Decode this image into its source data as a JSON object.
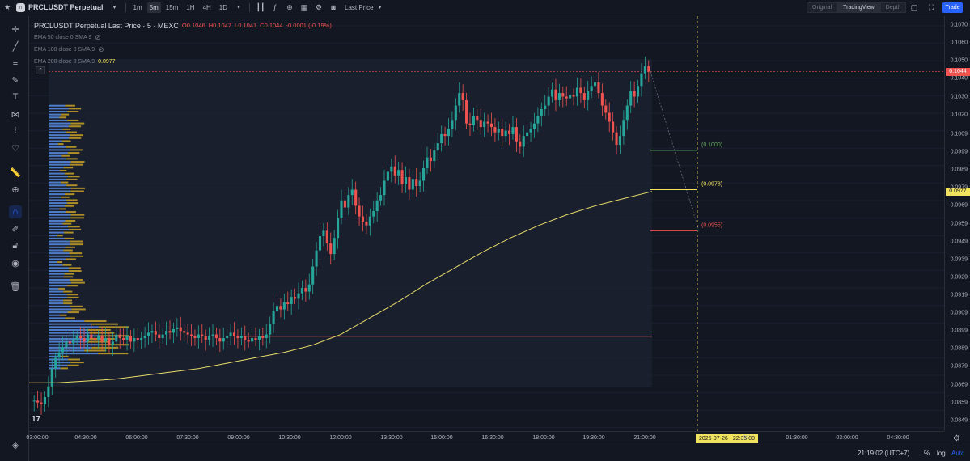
{
  "toolbar": {
    "symbol": "PRCLUSDT Perpetual",
    "intervals": [
      "1m",
      "5m",
      "15m",
      "1H",
      "4H",
      "1D"
    ],
    "active_interval": "5m",
    "price_type": "Last Price",
    "views": [
      "Original",
      "TradingView",
      "Depth"
    ],
    "active_view": "TradingView",
    "trade_label": "Trade"
  },
  "legend": {
    "title": "PRCLUSDT Perpetual Last Price · 5 · MEXC",
    "ohlc": {
      "o": "O0.1046",
      "h": "H0.1047",
      "l": "L0.1041",
      "c": "C0.1044",
      "chg": "-0.0001 (-0.19%)"
    },
    "ema50": "EMA 50 close 0 SMA 9",
    "ema100": "EMA 100 close 0 SMA 9",
    "ema200": "EMA 200 close 0 SMA 9",
    "ema200_value": "0.0977"
  },
  "price_axis": {
    "ticks": [
      "0.1070",
      "0.1060",
      "0.1050",
      "0.1040",
      "0.1030",
      "0.1020",
      "0.1009",
      "0.0999",
      "0.0989",
      "0.0979",
      "0.0969",
      "0.0959",
      "0.0949",
      "0.0939",
      "0.0929",
      "0.0919",
      "0.0909",
      "0.0899",
      "0.0889",
      "0.0879",
      "0.0869",
      "0.0859",
      "0.0849"
    ],
    "last_price": "0.1044",
    "ema_price": "0.0977"
  },
  "time_axis": {
    "ticks": [
      "03:00:00",
      "04:30:00",
      "06:00:00",
      "07:30:00",
      "09:00:00",
      "10:30:00",
      "12:00:00",
      "13:30:00",
      "15:00:00",
      "16:30:00",
      "18:00:00",
      "19:30:00",
      "21:00:00",
      "27",
      "01:30:00",
      "03:00:00",
      "04:30:00"
    ],
    "cursor_date": "2025-07-26",
    "cursor_time": "22:35:00"
  },
  "targets": {
    "upper": "(0.1000)",
    "mid": "(0.0978)",
    "lower": "(0.0955)"
  },
  "colors": {
    "up": "#26a69a",
    "down": "#ef5350",
    "ema200": "#e8db6a",
    "vp_up": "#5b8ee6",
    "vp_down": "#c9a227"
  },
  "bottom": {
    "clock": "21:19:02 (UTC+7)",
    "percent": "%",
    "log": "log",
    "auto": "Auto"
  },
  "chart_data": {
    "type": "candlestick",
    "interval": "5m",
    "ylim": [
      0.0843,
      0.1075
    ],
    "closes": [
      0.086,
      0.0859,
      0.0858,
      0.0862,
      0.0868,
      0.0878,
      0.0884,
      0.0887,
      0.089,
      0.0893,
      0.0892,
      0.0894,
      0.0896,
      0.0895,
      0.0893,
      0.0897,
      0.0895,
      0.0894,
      0.0896,
      0.0893,
      0.0895,
      0.0891,
      0.0893,
      0.0897,
      0.0895,
      0.0894,
      0.0896,
      0.0893,
      0.0895,
      0.0894,
      0.0895,
      0.0896,
      0.0898,
      0.0899,
      0.0897,
      0.0895,
      0.0897,
      0.0899,
      0.0898,
      0.09,
      0.0901,
      0.0899,
      0.0898,
      0.0897,
      0.0896,
      0.0895,
      0.0897,
      0.0896,
      0.0894,
      0.0896,
      0.0897,
      0.0895,
      0.0893,
      0.0895,
      0.0896,
      0.0898,
      0.0896,
      0.0895,
      0.0896,
      0.0894,
      0.0893,
      0.0895,
      0.0894,
      0.0896,
      0.0895,
      0.0897,
      0.0903,
      0.091,
      0.0913,
      0.0911,
      0.0915,
      0.0914,
      0.0918,
      0.0917,
      0.092,
      0.0923,
      0.0921,
      0.0925,
      0.0935,
      0.0944,
      0.0952,
      0.0955,
      0.0948,
      0.0942,
      0.0951,
      0.0962,
      0.0972,
      0.0968,
      0.0975,
      0.0978,
      0.0969,
      0.0963,
      0.096,
      0.0958,
      0.0963,
      0.0966,
      0.0972,
      0.0975,
      0.0983,
      0.0988,
      0.0991,
      0.0986,
      0.0989,
      0.0981,
      0.0985,
      0.0978,
      0.0984,
      0.098,
      0.0983,
      0.099,
      0.0996,
      0.0994,
      0.1,
      0.1004,
      0.1009,
      0.1008,
      0.1012,
      0.1017,
      0.1025,
      0.1032,
      0.1028,
      0.1015,
      0.1014,
      0.1019,
      0.1017,
      0.1013,
      0.1016,
      0.1015,
      0.1013,
      0.101,
      0.1012,
      0.1008,
      0.1011,
      0.1009,
      0.1013,
      0.1005,
      0.1002,
      0.1008,
      0.101,
      0.1012,
      0.1015,
      0.1019,
      0.1023,
      0.1025,
      0.103,
      0.1034,
      0.1028,
      0.1032,
      0.103,
      0.1029,
      0.1031,
      0.103,
      0.1035,
      0.1032,
      0.1028,
      0.1033,
      0.1036,
      0.1038,
      0.1032,
      0.1025,
      0.1021,
      0.1016,
      0.101,
      0.1003,
      0.1008,
      0.1017,
      0.1025,
      0.1033,
      0.103,
      0.1036,
      0.1043,
      0.1047,
      0.1044
    ],
    "ema200": [
      0.087,
      0.087,
      0.0871,
      0.0872,
      0.0874,
      0.0876,
      0.0878,
      0.0881,
      0.0884,
      0.0887,
      0.0891,
      0.0897,
      0.0906,
      0.0915,
      0.0925,
      0.0934,
      0.0943,
      0.0951,
      0.0958,
      0.0964,
      0.0969,
      0.0973,
      0.0977
    ],
    "targets": [
      0.1,
      0.0978,
      0.0955
    ],
    "support_level": 0.0896
  }
}
